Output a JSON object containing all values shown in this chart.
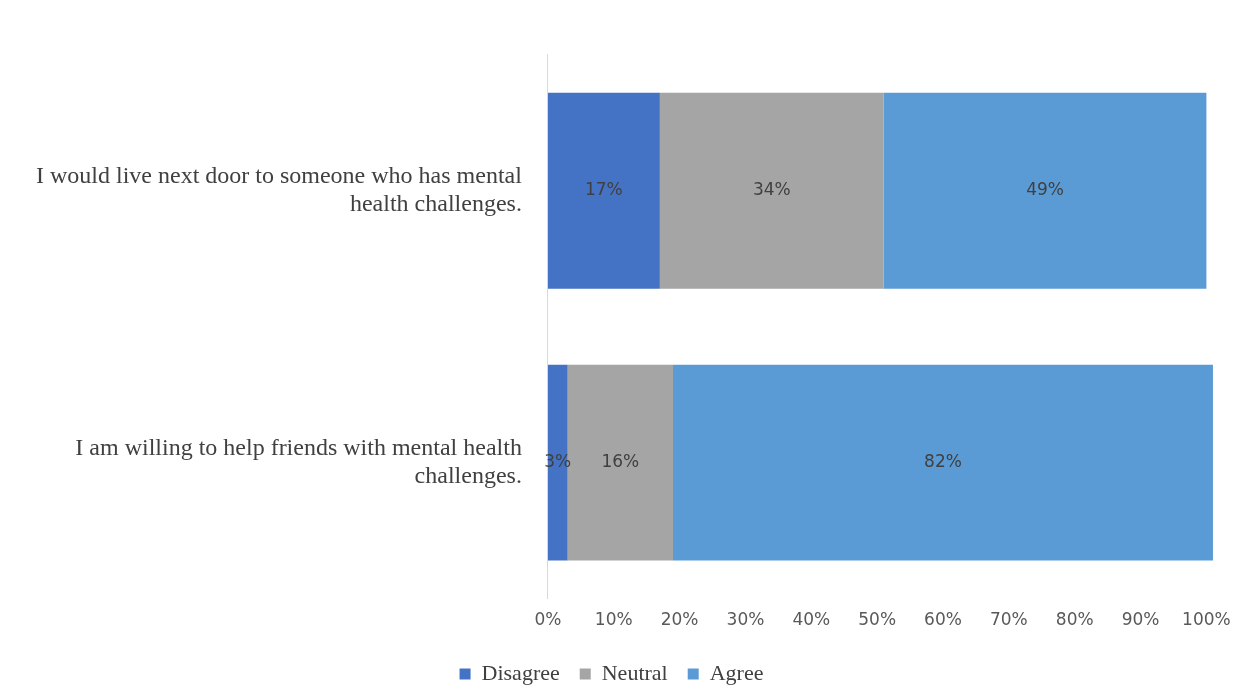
{
  "chart_data": {
    "type": "bar",
    "orientation": "horizontal",
    "stacked": true,
    "categories": [
      "I would live next door to someone who has mental health challenges.",
      "I am willing to help friends with mental health challenges."
    ],
    "series": [
      {
        "name": "Disagree",
        "color": "#4472c4",
        "values": [
          17,
          3
        ],
        "value_labels": [
          "17%",
          "3%"
        ]
      },
      {
        "name": "Neutral",
        "color": "#a5a5a5",
        "values": [
          34,
          16
        ],
        "value_labels": [
          "34%",
          "16%"
        ]
      },
      {
        "name": "Agree",
        "color": "#5b9bd5",
        "values": [
          49,
          82
        ],
        "value_labels": [
          "49%",
          "82%"
        ]
      }
    ],
    "xlim": [
      0,
      101
    ],
    "xticks": [
      {
        "value": 0,
        "label": "0%"
      },
      {
        "value": 10,
        "label": "10%"
      },
      {
        "value": 20,
        "label": "20%"
      },
      {
        "value": 30,
        "label": "30%"
      },
      {
        "value": 40,
        "label": "40%"
      },
      {
        "value": 50,
        "label": "50%"
      },
      {
        "value": 60,
        "label": "60%"
      },
      {
        "value": 70,
        "label": "70%"
      },
      {
        "value": 80,
        "label": "80%"
      },
      {
        "value": 90,
        "label": "90%"
      },
      {
        "value": 100,
        "label": "100%"
      }
    ],
    "grid": false,
    "legend": "bottom"
  }
}
